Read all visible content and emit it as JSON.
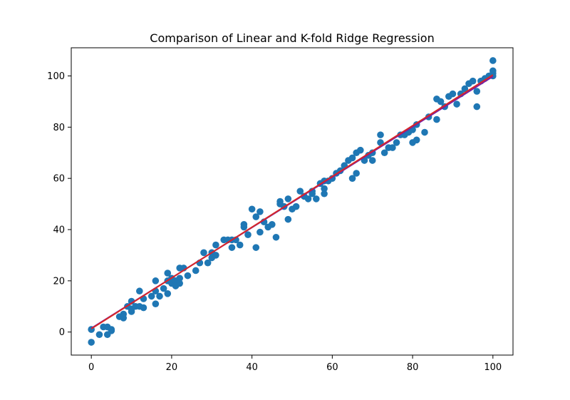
{
  "chart_data": {
    "type": "scatter",
    "title": "Comparison of Linear and K-fold Ridge Regression",
    "xlabel": "",
    "ylabel": "",
    "xlim": [
      -5,
      105
    ],
    "ylim": [
      -9,
      111
    ],
    "xticks": [
      0,
      20,
      40,
      60,
      80,
      100
    ],
    "yticks": [
      0,
      20,
      40,
      60,
      80,
      100
    ],
    "grid": false,
    "legend": "none",
    "colors": {
      "points": "#1f77b4",
      "linear_line": "#7b1fa2",
      "ridge_line": "#d62728"
    },
    "scatter": {
      "x": [
        0,
        0,
        2,
        3,
        4,
        4,
        5,
        5,
        7,
        8,
        8,
        9,
        10,
        10,
        10,
        11,
        12,
        12,
        13,
        13,
        15,
        16,
        16,
        16,
        17,
        18,
        19,
        19,
        19,
        20,
        20,
        21,
        21,
        22,
        22,
        22,
        23,
        24,
        26,
        27,
        28,
        29,
        30,
        30,
        31,
        31,
        33,
        34,
        35,
        35,
        36,
        37,
        38,
        38,
        39,
        40,
        41,
        41,
        42,
        42,
        43,
        44,
        45,
        46,
        47,
        47,
        48,
        49,
        49,
        50,
        51,
        52,
        53,
        54,
        55,
        55,
        56,
        57,
        58,
        58,
        58,
        59,
        60,
        61,
        62,
        63,
        64,
        65,
        65,
        66,
        66,
        67,
        68,
        69,
        70,
        70,
        72,
        72,
        73,
        74,
        75,
        76,
        77,
        78,
        79,
        80,
        80,
        81,
        81,
        83,
        84,
        86,
        86,
        87,
        88,
        89,
        90,
        91,
        92,
        93,
        94,
        95,
        96,
        96,
        97,
        98,
        99,
        100,
        100,
        100,
        100
      ],
      "y": [
        1,
        -4,
        -1,
        2,
        -1,
        2,
        1,
        0.5,
        6,
        5.5,
        7,
        10,
        8,
        12,
        9,
        10,
        16,
        10,
        13,
        9.5,
        14,
        20,
        16,
        11,
        14,
        17,
        15,
        20,
        23,
        19,
        21,
        20,
        18,
        21,
        19,
        25,
        25,
        22,
        24,
        27,
        31,
        27,
        29,
        31,
        30,
        34,
        36,
        36,
        33,
        36,
        36,
        34,
        41,
        42,
        38,
        48,
        45,
        33,
        47,
        39,
        43,
        41,
        42,
        37,
        50,
        51,
        49,
        52,
        44,
        48,
        49,
        55,
        53,
        52,
        54,
        55,
        52,
        58,
        56,
        59,
        54,
        59,
        60,
        62,
        63,
        65,
        67,
        68,
        60,
        70,
        62,
        71,
        67,
        69,
        70,
        67,
        74,
        77,
        70,
        72,
        72,
        74,
        77,
        77,
        78,
        79,
        74,
        75,
        81,
        78,
        84,
        91,
        83,
        90,
        88,
        92,
        93,
        89,
        93,
        95,
        97,
        98,
        88,
        94,
        98,
        99,
        100,
        100,
        101,
        102,
        106
      ]
    },
    "lines": [
      {
        "x": [
          0,
          100
        ],
        "y": [
          1.5,
          99.8
        ]
      },
      {
        "x": [
          0,
          100
        ],
        "y": [
          1.3,
          100.4
        ]
      }
    ]
  }
}
